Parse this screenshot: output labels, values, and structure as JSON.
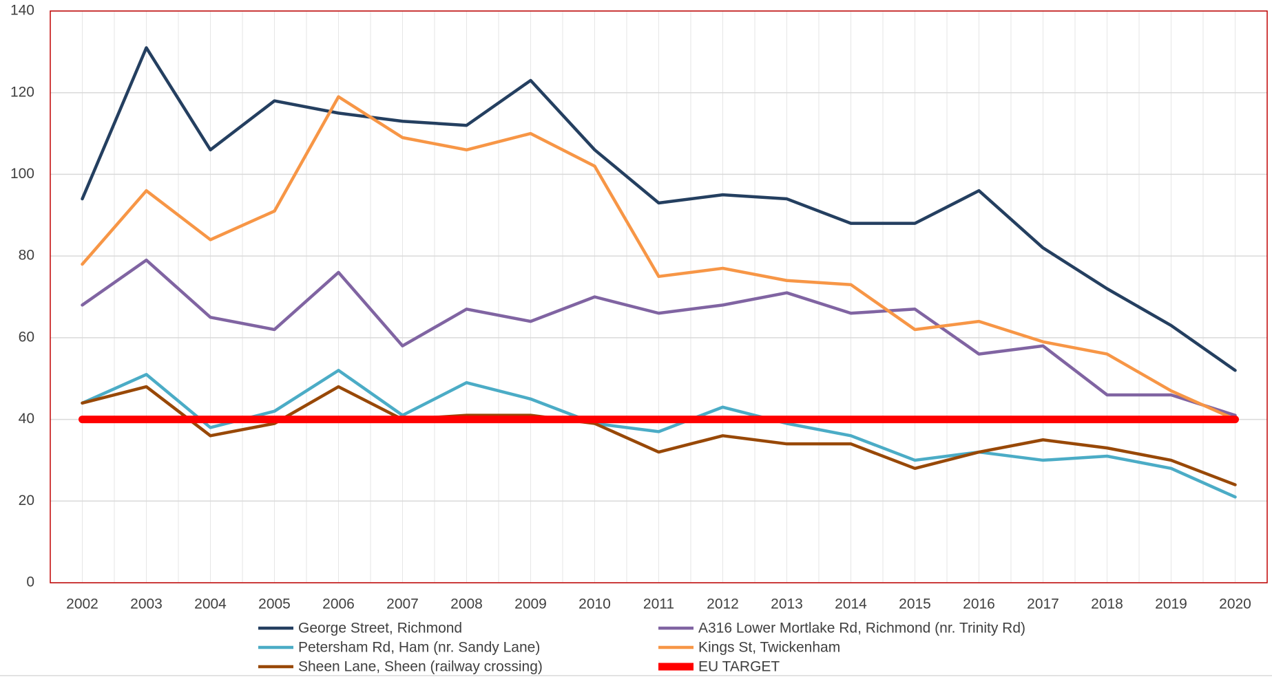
{
  "chart_data": {
    "type": "line",
    "categories": [
      "2002",
      "2003",
      "2004",
      "2005",
      "2006",
      "2007",
      "2008",
      "2009",
      "2010",
      "2011",
      "2012",
      "2013",
      "2014",
      "2015",
      "2016",
      "2017",
      "2018",
      "2019",
      "2020"
    ],
    "series": [
      {
        "name": "George Street, Richmond",
        "color": "#243f60",
        "width": 4.5,
        "values": [
          94,
          131,
          106,
          118,
          115,
          113,
          112,
          123,
          106,
          93,
          95,
          94,
          88,
          88,
          96,
          82,
          72,
          63,
          52
        ]
      },
      {
        "name": "A316 Lower Mortlake Rd, Richmond (nr. Trinity Rd)",
        "color": "#8064a2",
        "width": 4.5,
        "values": [
          68,
          79,
          65,
          62,
          76,
          58,
          67,
          64,
          70,
          66,
          68,
          71,
          66,
          67,
          56,
          58,
          46,
          46,
          41
        ]
      },
      {
        "name": "Petersham Rd, Ham (nr. Sandy Lane)",
        "color": "#4bacc6",
        "width": 4.5,
        "values": [
          44,
          51,
          38,
          42,
          52,
          41,
          49,
          45,
          39,
          37,
          43,
          39,
          36,
          30,
          32,
          30,
          31,
          28,
          21
        ]
      },
      {
        "name": "Kings St, Twickenham",
        "color": "#f79646",
        "width": 4.5,
        "values": [
          78,
          96,
          84,
          91,
          119,
          109,
          106,
          110,
          102,
          75,
          77,
          74,
          73,
          62,
          64,
          59,
          56,
          47,
          40
        ]
      },
      {
        "name": "Sheen Lane, Sheen (railway crossing)",
        "color": "#984807",
        "width": 4.5,
        "values": [
          44,
          48,
          36,
          39,
          48,
          40,
          41,
          41,
          39,
          32,
          36,
          34,
          34,
          28,
          32,
          35,
          33,
          30,
          24
        ]
      },
      {
        "name": "EU TARGET",
        "color": "#ff0000",
        "width": 11,
        "values": [
          40,
          40,
          40,
          40,
          40,
          40,
          40,
          40,
          40,
          40,
          40,
          40,
          40,
          40,
          40,
          40,
          40,
          40,
          40
        ]
      }
    ],
    "ylim": [
      0,
      140
    ],
    "yticks": [
      0,
      20,
      40,
      60,
      80,
      100,
      120,
      140
    ],
    "grid": true
  }
}
